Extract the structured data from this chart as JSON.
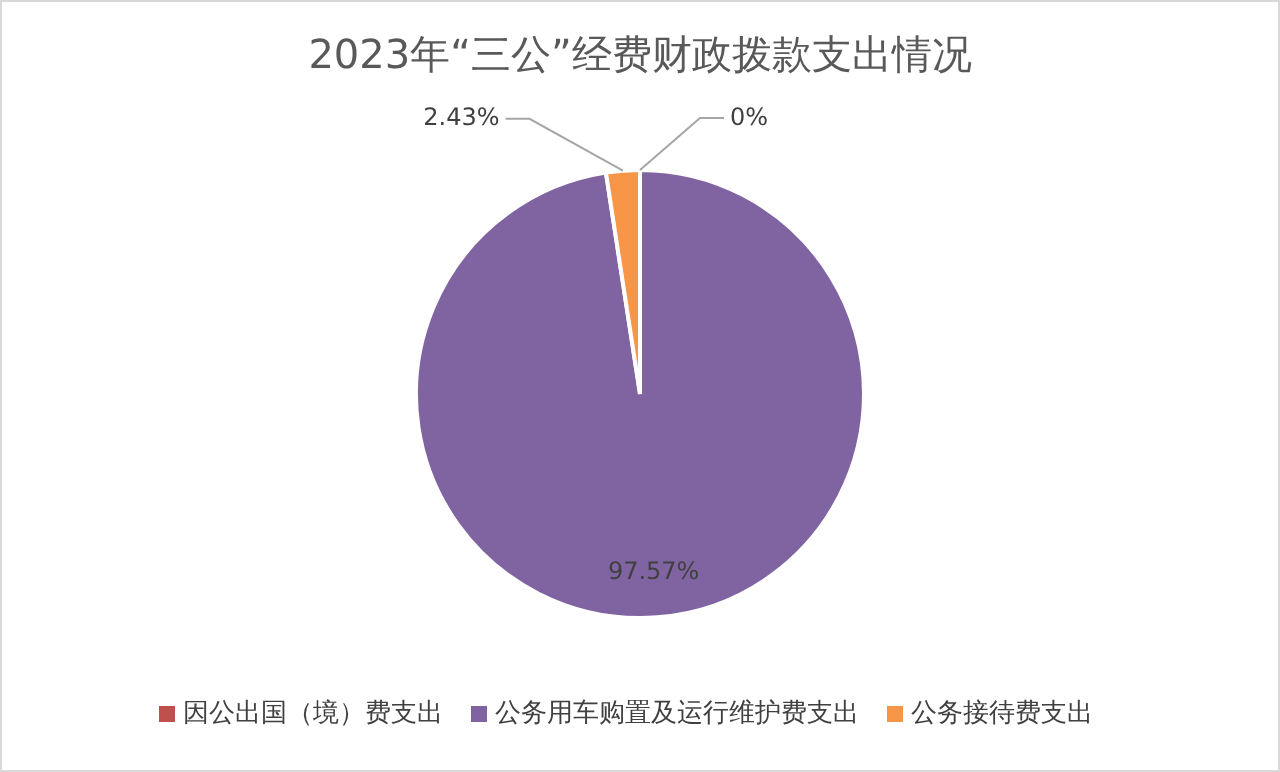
{
  "chart_data": {
    "type": "pie",
    "title": "2023年“三公”经费财政拨款支出情况",
    "categories": [
      "因公出国（境）费支出",
      "公务用车购置及运行维护费支出",
      "公务接待费支出"
    ],
    "values": [
      0,
      97.57,
      2.43
    ],
    "colors": [
      "#c0504d",
      "#8064a2",
      "#f79646"
    ],
    "value_labels": [
      "0%",
      "97.57%",
      "2.43%"
    ],
    "legend": "bottom"
  }
}
